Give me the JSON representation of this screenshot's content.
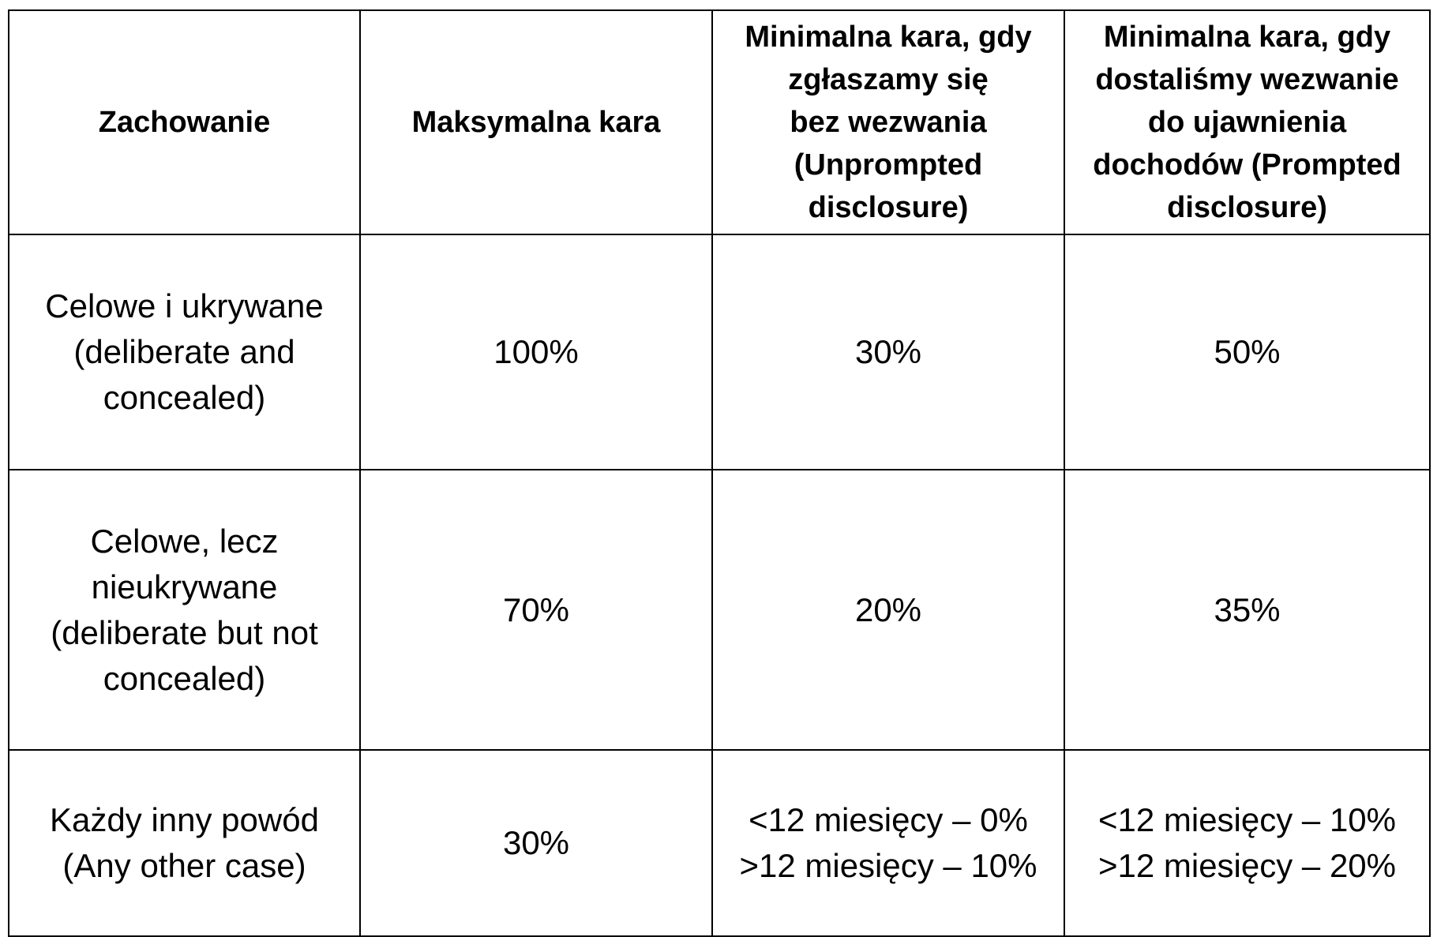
{
  "table": {
    "headers": [
      [
        "Zachowanie"
      ],
      [
        "Maksymalna kara"
      ],
      [
        "Minimalna kara, gdy",
        "zgłaszamy się",
        "bez wezwania",
        "(Unprompted",
        "disclosure)"
      ],
      [
        "Minimalna kara, gdy",
        "dostaliśmy wezwanie",
        "do ujawnienia",
        "dochodów (Prompted",
        "disclosure)"
      ]
    ],
    "rows": [
      [
        [
          "Celowe i ukrywane",
          "(deliberate and",
          "concealed)"
        ],
        [
          "100%"
        ],
        [
          "30%"
        ],
        [
          "50%"
        ]
      ],
      [
        [
          "Celowe, lecz",
          "nieukrywane",
          "(deliberate but not",
          "concealed)"
        ],
        [
          "70%"
        ],
        [
          "20%"
        ],
        [
          "35%"
        ]
      ],
      [
        [
          "Każdy inny powód",
          "(Any other case)"
        ],
        [
          "30%"
        ],
        [
          "<12 miesięcy – 0%",
          ">12 miesięcy – 10%"
        ],
        [
          "<12 miesięcy – 10%",
          ">12 miesięcy – 20%"
        ]
      ]
    ]
  }
}
